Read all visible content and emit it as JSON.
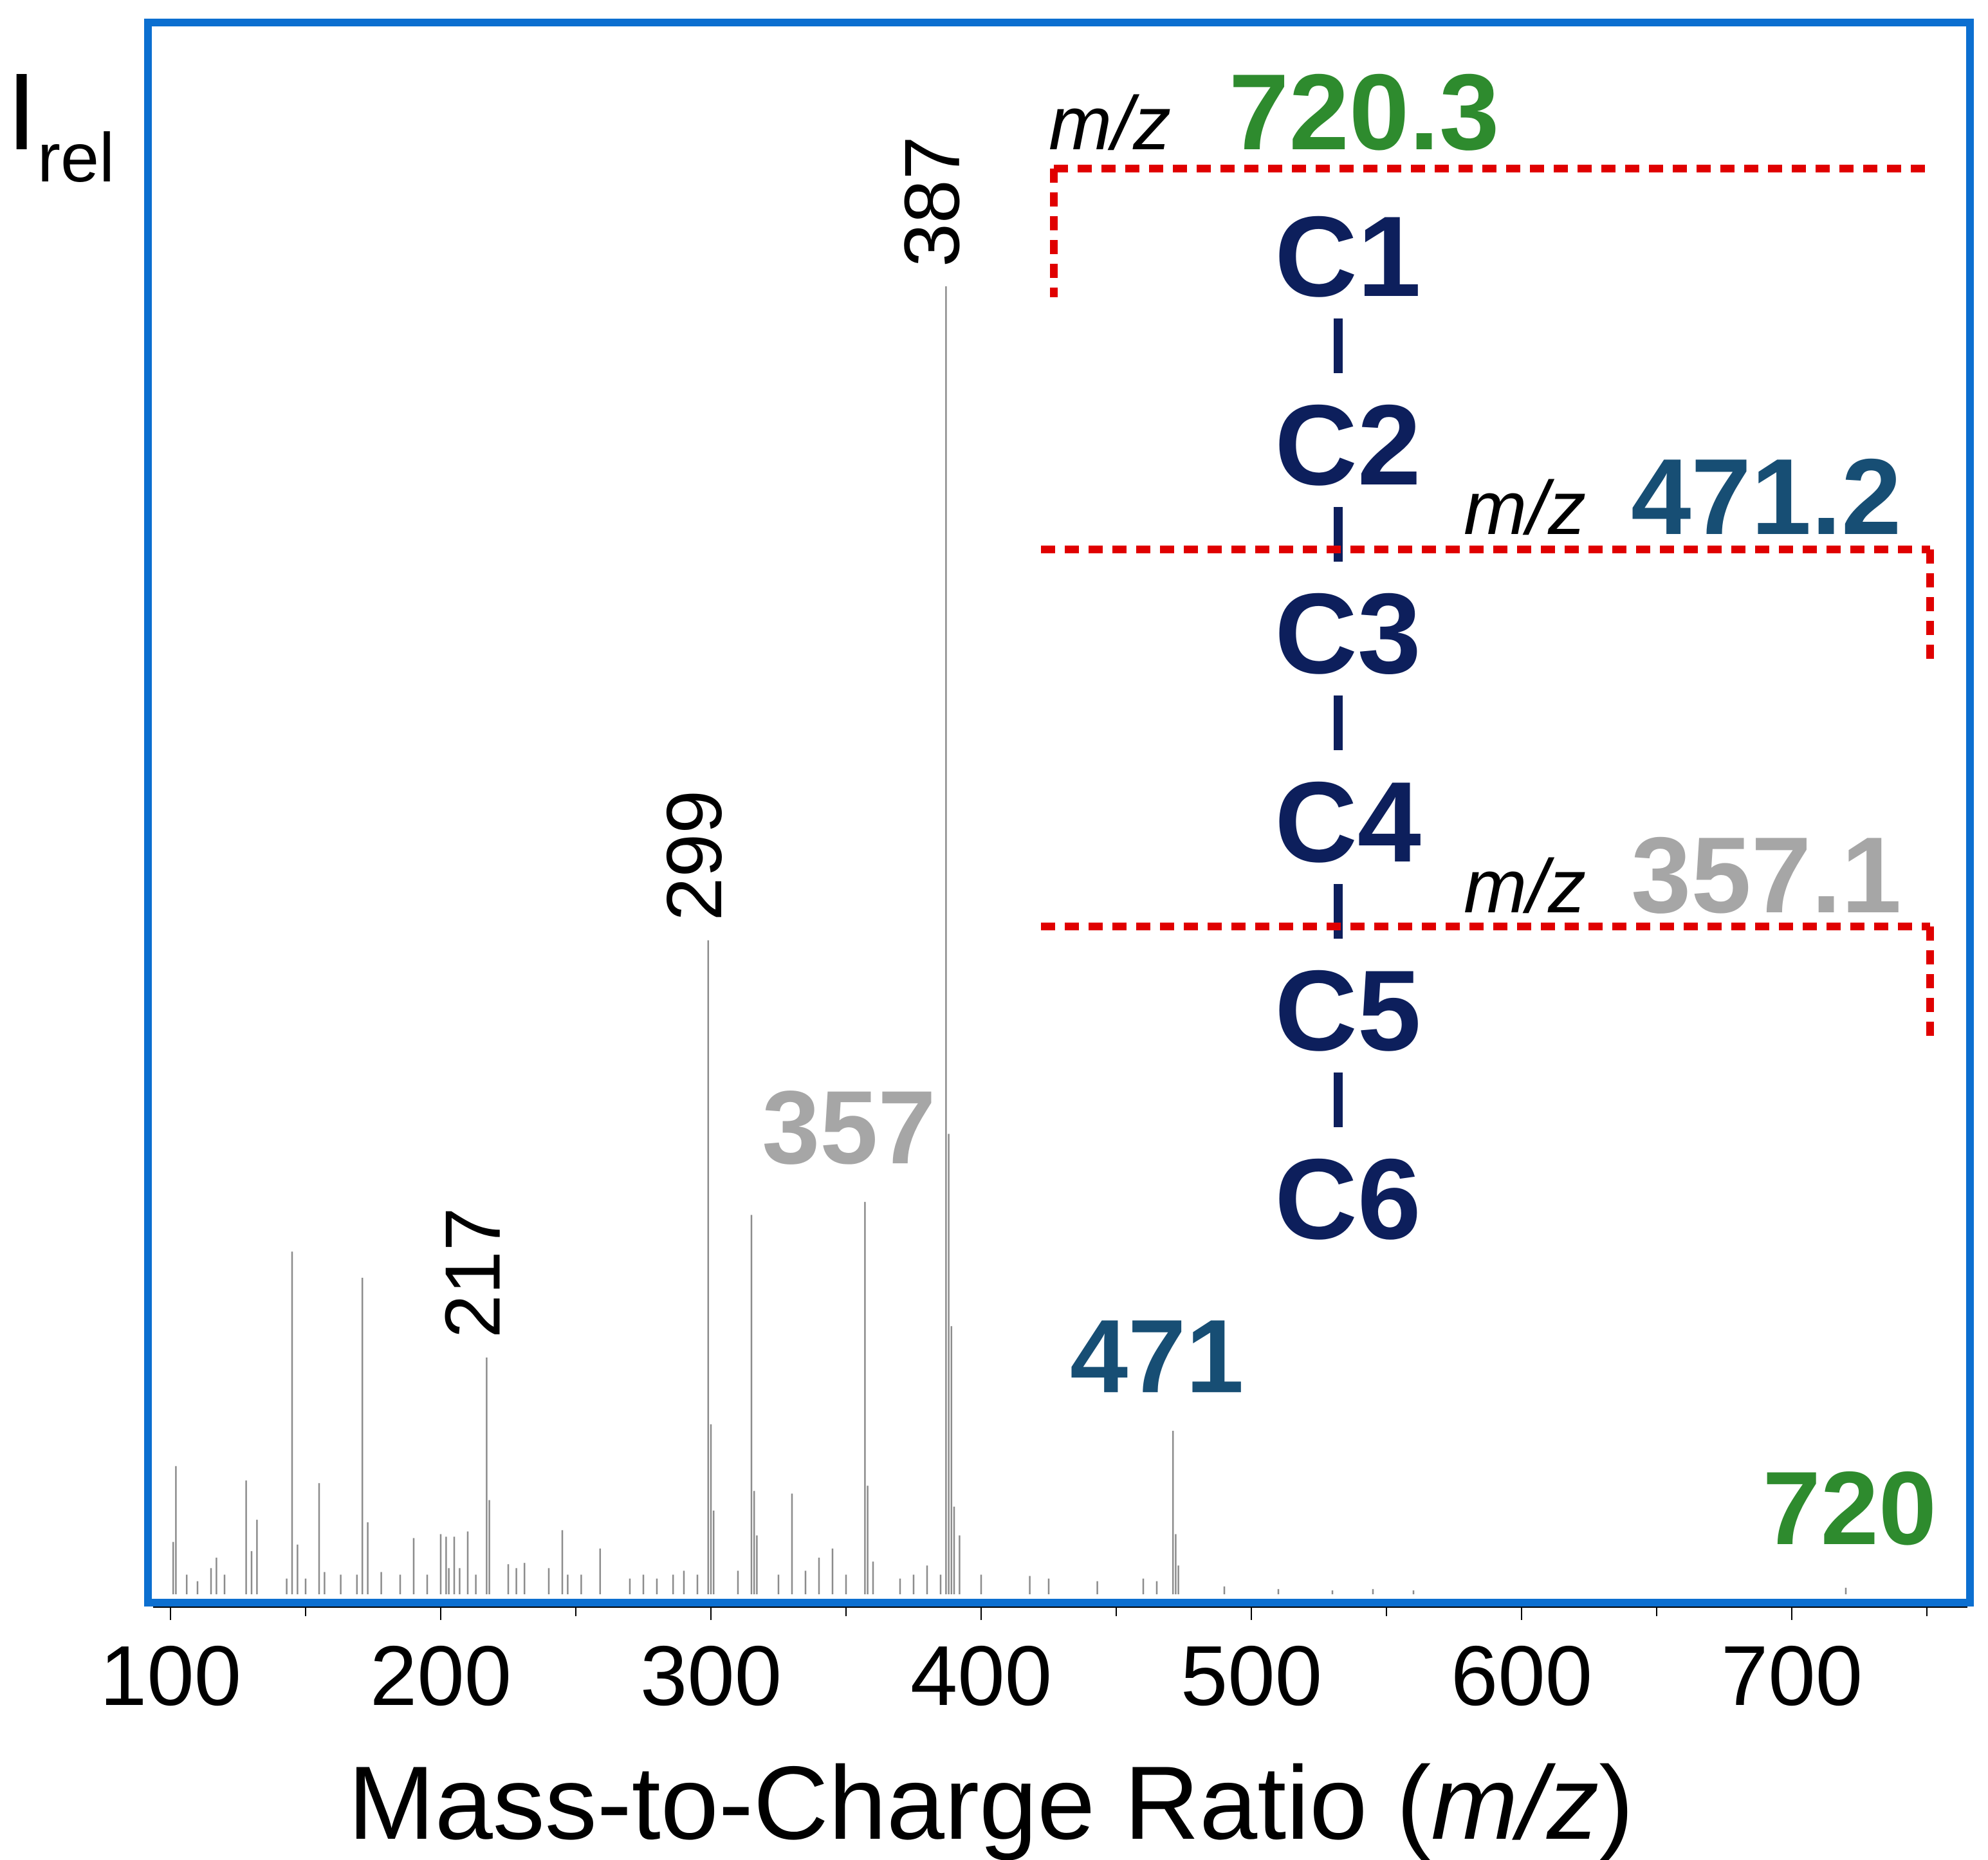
{
  "chart_data": {
    "type": "bar",
    "subtype": "mass-spectrum-stick",
    "title": "",
    "xlabel_main": "Mass-to-Charge Ratio (",
    "xlabel_unit": "m/z",
    "xlabel_close": ")",
    "ylabel_main": "I",
    "ylabel_sub": "rel",
    "xlim": [
      95,
      755
    ],
    "ylim": [
      0,
      100
    ],
    "xticks": [
      100,
      200,
      300,
      400,
      500,
      600,
      700
    ],
    "xtick_labels": [
      "100",
      "200",
      "300",
      "400",
      "500",
      "600",
      "700"
    ],
    "grid": false,
    "peaks": {
      "mz": [
        101,
        102,
        106,
        110,
        115,
        117,
        120,
        128,
        130,
        132,
        143,
        145,
        147,
        150,
        155,
        157,
        163,
        169,
        171,
        173,
        178,
        185,
        190,
        195,
        200,
        202,
        203,
        205,
        207,
        210,
        213,
        217,
        218,
        225,
        228,
        231,
        240,
        245,
        247,
        252,
        259,
        270,
        275,
        280,
        286,
        290,
        295,
        299,
        300,
        301,
        310,
        315,
        316,
        317,
        325,
        330,
        335,
        340,
        345,
        350,
        357,
        358,
        360,
        370,
        375,
        380,
        385,
        387,
        388,
        389,
        390,
        392,
        400,
        418,
        425,
        443,
        460,
        465,
        471,
        472,
        473,
        490,
        510,
        530,
        545,
        560,
        720
      ],
      "intensity": [
        4,
        9.8,
        1.5,
        1,
        2,
        2.8,
        1.5,
        8.7,
        3.3,
        5.7,
        1.2,
        26.2,
        3.8,
        1.2,
        8.5,
        1.7,
        1.5,
        1.5,
        24.2,
        5.5,
        1.7,
        1.5,
        4.3,
        1.5,
        4.6,
        4.4,
        2,
        4.4,
        2,
        4.8,
        1.5,
        18.1,
        7.2,
        2.3,
        2,
        2.4,
        2,
        4.9,
        1.5,
        1.5,
        3.5,
        1.2,
        1.5,
        1.2,
        1.5,
        1.8,
        1.5,
        50,
        13,
        6.4,
        1.8,
        29,
        7.9,
        4.5,
        1.5,
        7.7,
        1.8,
        2.8,
        3.5,
        1.5,
        30,
        8.3,
        2.5,
        1.2,
        1.5,
        2.2,
        1.5,
        100,
        35.2,
        20.5,
        6.7,
        4.5,
        1.5,
        1.4,
        1.2,
        1,
        1.2,
        1,
        12.5,
        4.6,
        2.2,
        0.6,
        0.4,
        0.3,
        0.4,
        0.3,
        0.5
      ]
    },
    "peak_labels": [
      {
        "mz": 217,
        "text": "217",
        "style": "rotated",
        "color": "#000000"
      },
      {
        "mz": 299,
        "text": "299",
        "style": "rotated",
        "color": "#000000"
      },
      {
        "mz": 387,
        "text": "387",
        "style": "rotated",
        "color": "#000000"
      },
      {
        "mz": 357,
        "text": "357",
        "style": "bold",
        "color": "#a6a6a6"
      },
      {
        "mz": 471,
        "text": "471",
        "style": "bold",
        "color": "#174e74"
      },
      {
        "mz": 720,
        "text": "720",
        "style": "bold",
        "color": "#2e8b2e"
      }
    ],
    "annotations": [
      {
        "prefix": "m/z",
        "value": "720.3",
        "color": "#2e8b2e"
      },
      {
        "prefix": "m/z",
        "value": "471.2",
        "color": "#174e74"
      },
      {
        "prefix": "m/z",
        "value": "357.1",
        "color": "#a6a6a6"
      }
    ],
    "chain": [
      "C1",
      "C2",
      "C3",
      "C4",
      "C5",
      "C6"
    ],
    "colors": {
      "frame": "#0c6fd0",
      "peaks": "#8c8c8c",
      "chain": "#0d1f5c",
      "cleavage": "#e00000",
      "axis": "#000000"
    }
  }
}
